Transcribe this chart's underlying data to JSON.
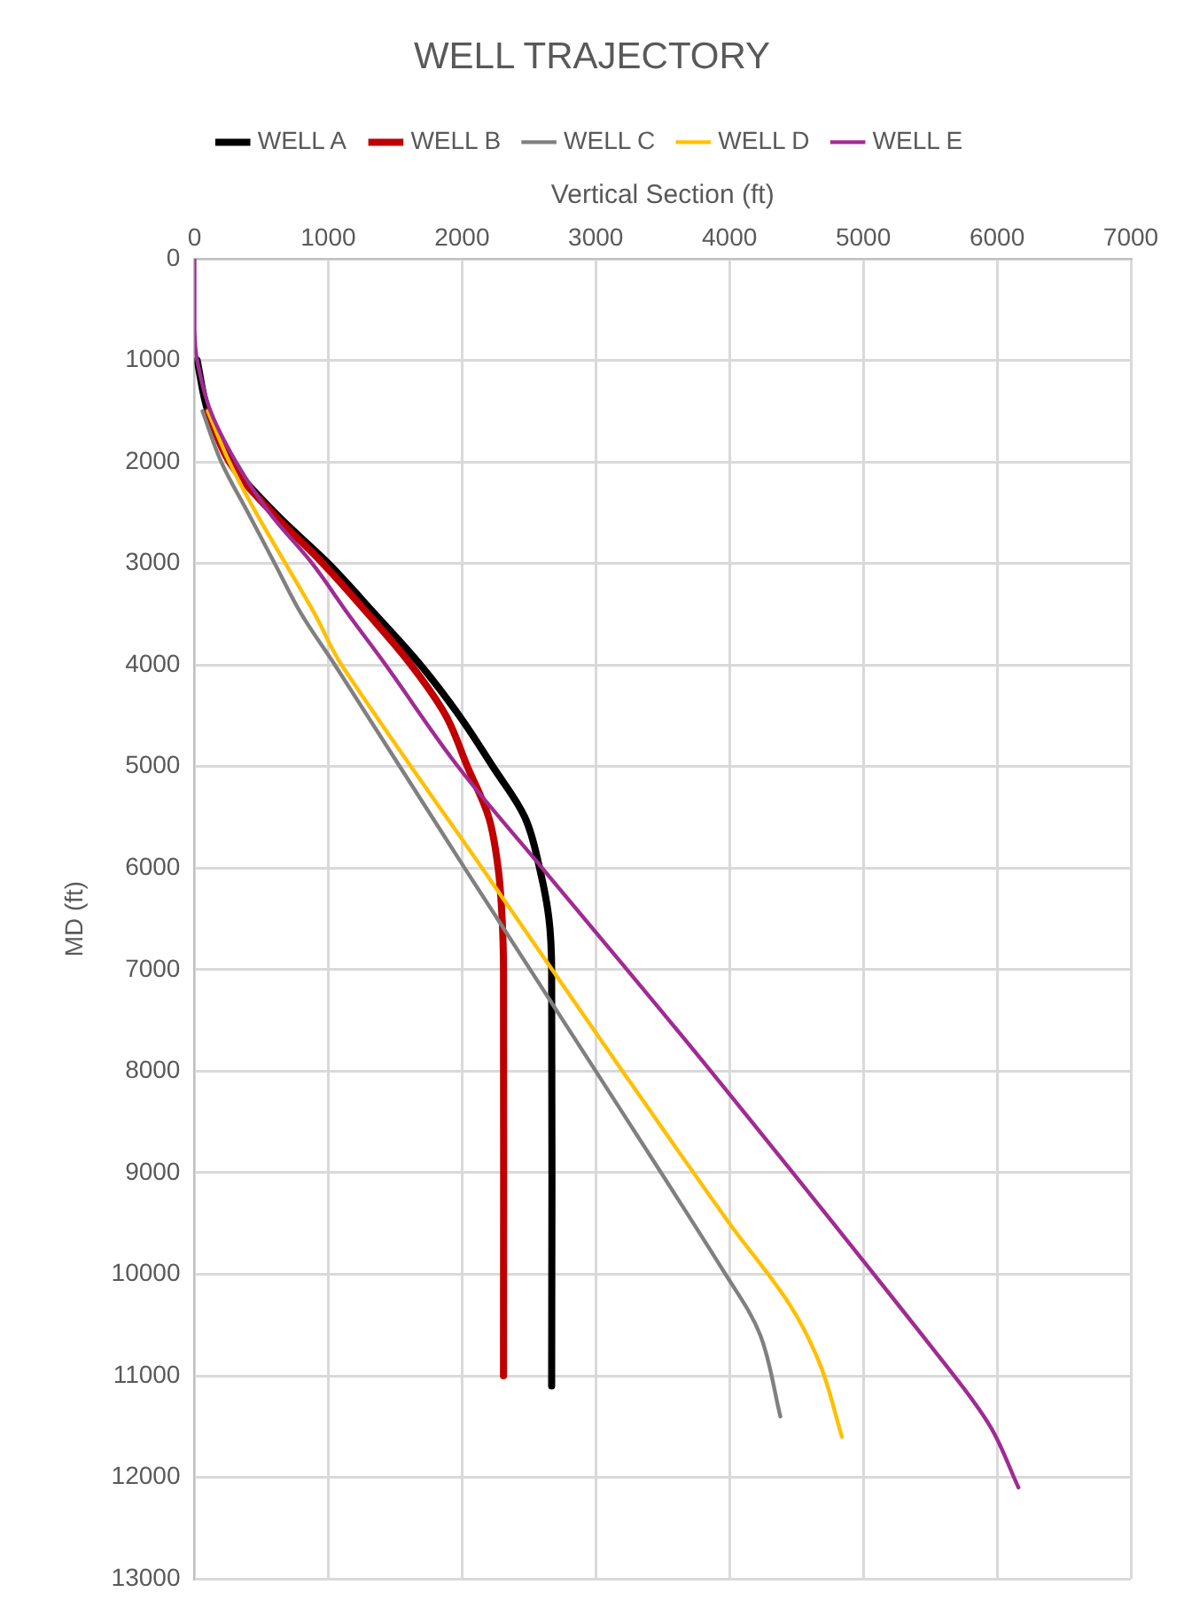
{
  "chart_data": {
    "type": "line",
    "title": "WELL TRAJECTORY",
    "xlabel": "Vertical Section (ft)",
    "ylabel": "MD (ft)",
    "xlim": [
      0,
      7000
    ],
    "xticks": [
      0,
      1000,
      2000,
      3000,
      4000,
      5000,
      6000,
      7000
    ],
    "ylim": [
      13000,
      0
    ],
    "yticks": [
      0,
      1000,
      2000,
      3000,
      4000,
      5000,
      6000,
      7000,
      8000,
      9000,
      10000,
      11000,
      12000,
      13000
    ],
    "grid": true,
    "legend": "top",
    "marker": "none",
    "line_style": "solid",
    "series": [
      {
        "name": "WELL A",
        "color": "#000000",
        "x": [
          20,
          100,
          270,
          600,
          1000,
          1350,
          1690,
          1980,
          2230,
          2470,
          2580,
          2650,
          2670,
          2670
        ],
        "values": [
          1000,
          1500,
          2000,
          2500,
          3000,
          3500,
          4000,
          4500,
          5000,
          5500,
          6000,
          6500,
          7000,
          11100
        ]
      },
      {
        "name": "WELL B",
        "color": "#c00000",
        "x": [
          100,
          260,
          580,
          960,
          1300,
          1620,
          1880,
          2040,
          2200,
          2270,
          2300,
          2310,
          2310
        ],
        "values": [
          1500,
          2000,
          2500,
          3000,
          3500,
          4000,
          4500,
          5000,
          5500,
          6000,
          6500,
          7000,
          11000
        ]
      },
      {
        "name": "WELL C",
        "color": "#808080",
        "x": [
          60,
          200,
          400,
          600,
          800,
          1050,
          2020,
          3000,
          3970,
          4230,
          4380
        ],
        "values": [
          1500,
          2000,
          2500,
          3000,
          3500,
          4000,
          6000,
          8000,
          10000,
          10600,
          11400
        ]
      },
      {
        "name": "WELL D",
        "color": "#ffc000",
        "x": [
          100,
          260,
          460,
          680,
          900,
          1100,
          2150,
          3200,
          4000,
          4450,
          4680,
          4840
        ],
        "values": [
          1500,
          2000,
          2500,
          3000,
          3500,
          4000,
          6000,
          8000,
          9500,
          10300,
          10900,
          11600
        ]
      },
      {
        "name": "WELL E",
        "color": "#a02b93",
        "x": [
          0,
          0,
          20,
          120,
          310,
          560,
          880,
          1150,
          1430,
          1970,
          2600,
          3860,
          5620,
          5950,
          6160
        ],
        "values": [
          0,
          700,
          1000,
          1500,
          2000,
          2500,
          3000,
          3500,
          4000,
          5000,
          6000,
          8000,
          10900,
          11500,
          12100
        ]
      }
    ]
  }
}
